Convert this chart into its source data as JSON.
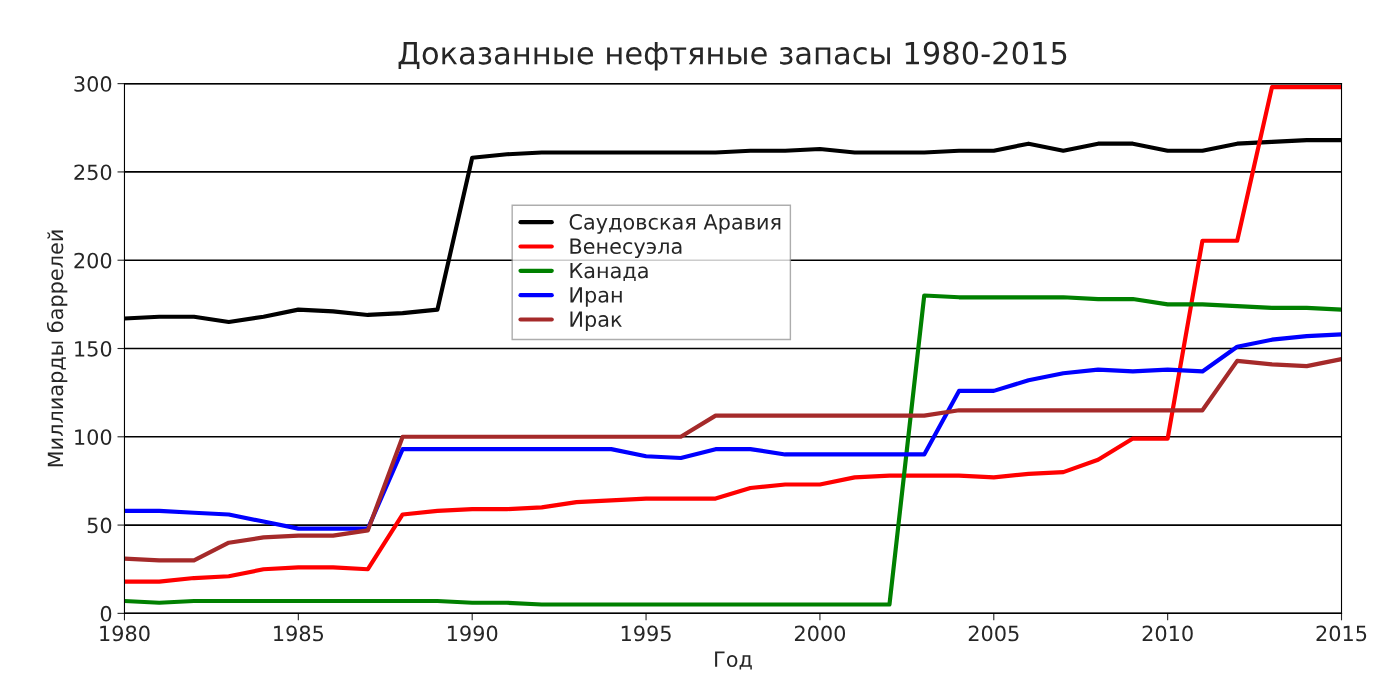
{
  "chart_data": {
    "type": "line",
    "title": "Доказанные нефтяные запасы 1980-2015",
    "xlabel": "Год",
    "ylabel": "Миллиарды баррелей",
    "x": [
      1980,
      1981,
      1982,
      1983,
      1984,
      1985,
      1986,
      1987,
      1988,
      1989,
      1990,
      1991,
      1992,
      1993,
      1994,
      1995,
      1996,
      1997,
      1998,
      1999,
      2000,
      2001,
      2002,
      2003,
      2004,
      2005,
      2006,
      2007,
      2008,
      2009,
      2010,
      2011,
      2012,
      2013,
      2014,
      2015
    ],
    "series": [
      {
        "name": "Саудовская Аравия",
        "color": "#000000",
        "values": [
          167,
          168,
          168,
          165,
          168,
          172,
          171,
          169,
          170,
          172,
          258,
          260,
          261,
          261,
          261,
          261,
          261,
          261,
          262,
          262,
          263,
          261,
          261,
          261,
          262,
          262,
          266,
          262,
          266,
          266,
          262,
          262,
          266,
          267,
          268,
          268
        ]
      },
      {
        "name": "Венесуэла",
        "color": "#ff0000",
        "values": [
          18,
          18,
          20,
          21,
          25,
          26,
          26,
          25,
          56,
          58,
          59,
          59,
          60,
          63,
          64,
          65,
          65,
          65,
          71,
          73,
          73,
          77,
          78,
          78,
          78,
          77,
          79,
          80,
          87,
          99,
          99,
          211,
          211,
          298,
          298,
          298
        ]
      },
      {
        "name": "Канада",
        "color": "#008000",
        "values": [
          7,
          6,
          7,
          7,
          7,
          7,
          7,
          7,
          7,
          7,
          6,
          6,
          5,
          5,
          5,
          5,
          5,
          5,
          5,
          5,
          5,
          5,
          5,
          180,
          179,
          179,
          179,
          179,
          178,
          178,
          175,
          175,
          174,
          173,
          173,
          172
        ]
      },
      {
        "name": "Иран",
        "color": "#0000ff",
        "values": [
          58,
          58,
          57,
          56,
          52,
          48,
          48,
          48,
          93,
          93,
          93,
          93,
          93,
          93,
          93,
          89,
          88,
          93,
          93,
          90,
          90,
          90,
          90,
          90,
          126,
          126,
          132,
          136,
          138,
          137,
          138,
          137,
          151,
          155,
          157,
          158
        ]
      },
      {
        "name": "Ирак",
        "color": "#a52a2a",
        "values": [
          31,
          30,
          30,
          40,
          43,
          44,
          44,
          47,
          100,
          100,
          100,
          100,
          100,
          100,
          100,
          100,
          100,
          112,
          112,
          112,
          112,
          112,
          112,
          112,
          115,
          115,
          115,
          115,
          115,
          115,
          115,
          115,
          143,
          141,
          140,
          144
        ]
      }
    ],
    "xlim": [
      1980,
      2015
    ],
    "xticks": [
      1980,
      1985,
      1990,
      1995,
      2000,
      2005,
      2010,
      2015
    ],
    "ylim": [
      0,
      300
    ],
    "yticks": [
      0,
      50,
      100,
      150,
      200,
      250,
      300
    ],
    "grid": "y",
    "legend": "top",
    "line_style": "solid",
    "marker": "none"
  }
}
